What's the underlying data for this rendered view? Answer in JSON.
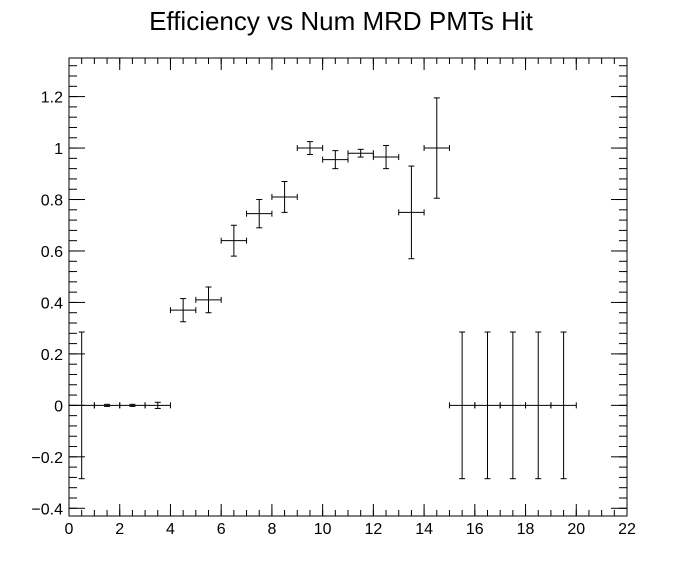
{
  "chart_data": {
    "type": "scatter",
    "title": "Efficiency vs Num MRD PMTs Hit",
    "xlabel": "",
    "ylabel": "",
    "xlim": [
      0,
      22
    ],
    "ylim": [
      -0.43,
      1.35
    ],
    "xticks": [
      0,
      2,
      4,
      6,
      8,
      10,
      12,
      14,
      16,
      18,
      20,
      22
    ],
    "xtick_labels": [
      "0",
      "2",
      "4",
      "6",
      "8",
      "10",
      "12",
      "14",
      "16",
      "18",
      "20",
      "22"
    ],
    "yticks": [
      -0.4,
      -0.2,
      0,
      0.2,
      0.4,
      0.6,
      0.8,
      1,
      1.2
    ],
    "ytick_labels": [
      "−0.4",
      "−0.2",
      "0",
      "0.2",
      "0.4",
      "0.6",
      "0.8",
      "1",
      "1.2"
    ],
    "grid": false,
    "legend": "none",
    "series": [
      {
        "points": [
          {
            "x": 0.5,
            "y": 0,
            "xerr": 0.5,
            "yerr": 0.285
          },
          {
            "x": 1.5,
            "y": 0,
            "xerr": 0.5,
            "yerr": 0.004
          },
          {
            "x": 2.5,
            "y": 0,
            "xerr": 0.5,
            "yerr": 0.004
          },
          {
            "x": 3.5,
            "y": 0,
            "xerr": 0.5,
            "yerr": 0.012
          },
          {
            "x": 4.5,
            "y": 0.37,
            "xerr": 0.5,
            "yerr": 0.045
          },
          {
            "x": 5.5,
            "y": 0.41,
            "xerr": 0.5,
            "yerr": 0.05
          },
          {
            "x": 6.5,
            "y": 0.64,
            "xerr": 0.5,
            "yerr": 0.06
          },
          {
            "x": 7.5,
            "y": 0.745,
            "xerr": 0.5,
            "yerr": 0.055
          },
          {
            "x": 8.5,
            "y": 0.81,
            "xerr": 0.5,
            "yerr": 0.06
          },
          {
            "x": 9.5,
            "y": 1.0,
            "xerr": 0.5,
            "yerr": 0.025
          },
          {
            "x": 10.5,
            "y": 0.955,
            "xerr": 0.5,
            "yerr": 0.035
          },
          {
            "x": 11.5,
            "y": 0.98,
            "xerr": 0.5,
            "yerr": 0.015
          },
          {
            "x": 12.5,
            "y": 0.965,
            "xerr": 0.5,
            "yerr": 0.045
          },
          {
            "x": 13.5,
            "y": 0.75,
            "xerr": 0.5,
            "yerr": 0.18
          },
          {
            "x": 14.5,
            "y": 1.0,
            "xerr": 0.5,
            "yerr": 0.195
          },
          {
            "x": 15.5,
            "y": 0,
            "xerr": 0.5,
            "yerr": 0.285
          },
          {
            "x": 16.5,
            "y": 0,
            "xerr": 0.5,
            "yerr": 0.285
          },
          {
            "x": 17.5,
            "y": 0,
            "xerr": 0.5,
            "yerr": 0.285
          },
          {
            "x": 18.5,
            "y": 0,
            "xerr": 0.5,
            "yerr": 0.285
          },
          {
            "x": 19.5,
            "y": 0,
            "xerr": 0.5,
            "yerr": 0.285
          }
        ]
      }
    ]
  }
}
